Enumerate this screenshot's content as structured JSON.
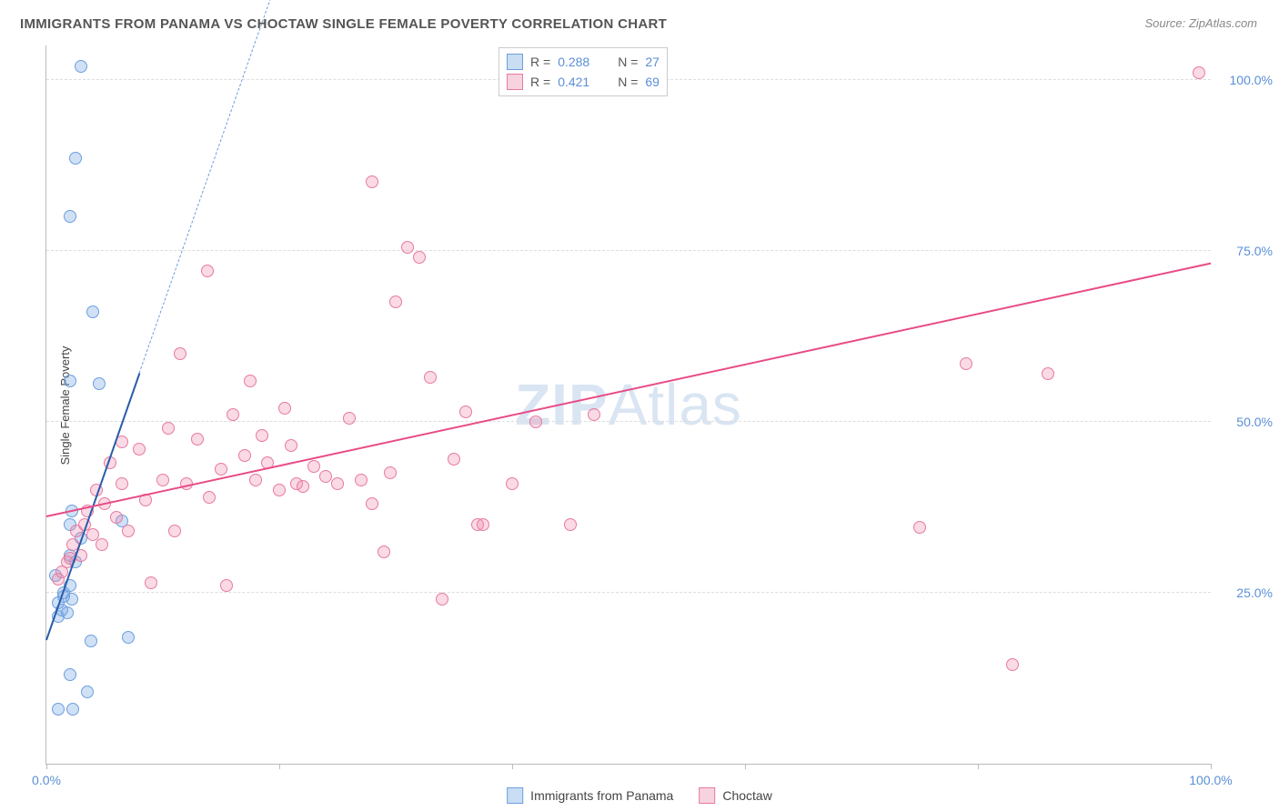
{
  "title": "IMMIGRANTS FROM PANAMA VS CHOCTAW SINGLE FEMALE POVERTY CORRELATION CHART",
  "source": "Source: ZipAtlas.com",
  "ylabel": "Single Female Poverty",
  "watermark_main": "ZIP",
  "watermark_sub": "Atlas",
  "chart": {
    "type": "scatter",
    "background_color": "#ffffff",
    "grid_color": "#dddddd",
    "axis_color": "#bbbbbb",
    "tick_label_color": "#5b8fd6",
    "xlim": [
      0,
      100
    ],
    "ylim": [
      0,
      105
    ],
    "ytick_positions": [
      25,
      50,
      75,
      100
    ],
    "ytick_labels": [
      "25.0%",
      "50.0%",
      "75.0%",
      "100.0%"
    ],
    "xtick_positions": [
      0,
      20,
      40,
      60,
      80,
      100
    ],
    "xtick_labels_shown": {
      "0": "0.0%",
      "100": "100.0%"
    },
    "marker_radius": 7,
    "marker_border_width": 1.2,
    "series": [
      {
        "id": "panama",
        "label": "Immigrants from Panama",
        "fill": "rgba(120,170,230,0.35)",
        "stroke": "#6b9fde",
        "trend_solid_color": "#2a5ca8",
        "trend_dash_color": "#6b9fde",
        "R": "0.288",
        "N": "27",
        "swatch_fill": "#c9ddf3",
        "swatch_border": "#6b9fde",
        "points": [
          [
            1.0,
            8.0
          ],
          [
            2.3,
            8.0
          ],
          [
            3.5,
            10.5
          ],
          [
            2.0,
            13.0
          ],
          [
            3.8,
            18.0
          ],
          [
            7.0,
            18.5
          ],
          [
            1.0,
            21.5
          ],
          [
            1.3,
            22.5
          ],
          [
            1.8,
            22.0
          ],
          [
            2.2,
            24.0
          ],
          [
            1.0,
            23.5
          ],
          [
            1.5,
            25.0
          ],
          [
            2.0,
            26.0
          ],
          [
            0.8,
            27.5
          ],
          [
            2.5,
            29.5
          ],
          [
            2.0,
            30.5
          ],
          [
            3.0,
            33.0
          ],
          [
            2.0,
            35.0
          ],
          [
            2.2,
            37.0
          ],
          [
            6.5,
            35.5
          ],
          [
            2.0,
            56.0
          ],
          [
            4.5,
            55.5
          ],
          [
            4.0,
            66.0
          ],
          [
            2.0,
            80.0
          ],
          [
            2.5,
            88.5
          ],
          [
            3.0,
            102.0
          ],
          [
            1.5,
            24.5
          ]
        ],
        "trend": {
          "x1": 0,
          "y1": 18,
          "x2": 8,
          "y2": 57,
          "extend_x": 22,
          "extend_y": 125
        }
      },
      {
        "id": "choctaw",
        "label": "Choctaw",
        "fill": "rgba(240,140,175,0.32)",
        "stroke": "#e77aa0",
        "trend_solid_color": "#e84b86",
        "R": "0.421",
        "N": "69",
        "swatch_fill": "#f7d3df",
        "swatch_border": "#e77aa0",
        "points": [
          [
            1.0,
            27.0
          ],
          [
            1.3,
            28.0
          ],
          [
            1.8,
            29.5
          ],
          [
            2.0,
            30.0
          ],
          [
            2.3,
            32.0
          ],
          [
            2.6,
            34.0
          ],
          [
            3.0,
            30.5
          ],
          [
            3.3,
            35.0
          ],
          [
            3.5,
            37.0
          ],
          [
            4.0,
            33.5
          ],
          [
            4.3,
            40.0
          ],
          [
            4.8,
            32.0
          ],
          [
            5.0,
            38.0
          ],
          [
            5.5,
            44.0
          ],
          [
            6.0,
            36.0
          ],
          [
            6.5,
            41.0
          ],
          [
            6.5,
            47.0
          ],
          [
            7.0,
            34.0
          ],
          [
            8.0,
            46.0
          ],
          [
            8.5,
            38.5
          ],
          [
            9.0,
            26.5
          ],
          [
            10.0,
            41.5
          ],
          [
            10.5,
            49.0
          ],
          [
            11.0,
            34.0
          ],
          [
            11.5,
            60.0
          ],
          [
            12.0,
            41.0
          ],
          [
            13.0,
            47.5
          ],
          [
            13.8,
            72.0
          ],
          [
            14.0,
            39.0
          ],
          [
            15.0,
            43.0
          ],
          [
            15.5,
            26.0
          ],
          [
            16.0,
            51.0
          ],
          [
            17.0,
            45.0
          ],
          [
            17.5,
            56.0
          ],
          [
            18.0,
            41.5
          ],
          [
            18.5,
            48.0
          ],
          [
            19.0,
            44.0
          ],
          [
            20.0,
            40.0
          ],
          [
            20.5,
            52.0
          ],
          [
            21.0,
            46.5
          ],
          [
            21.5,
            41.0
          ],
          [
            22.0,
            40.5
          ],
          [
            23.0,
            43.5
          ],
          [
            24.0,
            42.0
          ],
          [
            25.0,
            41.0
          ],
          [
            26.0,
            50.5
          ],
          [
            27.0,
            41.5
          ],
          [
            28.0,
            85.0
          ],
          [
            28.0,
            38.0
          ],
          [
            29.0,
            31.0
          ],
          [
            29.5,
            42.5
          ],
          [
            30.0,
            67.5
          ],
          [
            31.0,
            75.5
          ],
          [
            32.0,
            74.0
          ],
          [
            33.0,
            56.5
          ],
          [
            34.0,
            24.0
          ],
          [
            35.0,
            44.5
          ],
          [
            36.0,
            51.5
          ],
          [
            37.0,
            35.0
          ],
          [
            40.0,
            41.0
          ],
          [
            42.0,
            50.0
          ],
          [
            45.0,
            35.0
          ],
          [
            47.0,
            51.0
          ],
          [
            75.0,
            34.5
          ],
          [
            79.0,
            58.5
          ],
          [
            83.0,
            14.5
          ],
          [
            86.0,
            57.0
          ],
          [
            37.5,
            35.0
          ],
          [
            99.0,
            101.0
          ]
        ],
        "trend": {
          "x1": 0,
          "y1": 36,
          "x2": 100,
          "y2": 73
        }
      }
    ]
  },
  "legend_bottom": [
    {
      "series": "panama"
    },
    {
      "series": "choctaw"
    }
  ]
}
